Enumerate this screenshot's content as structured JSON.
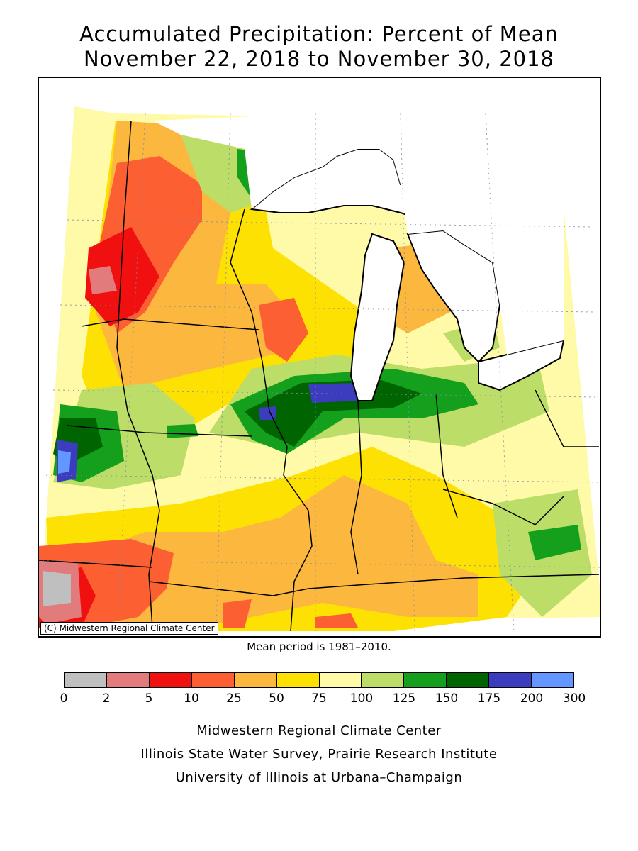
{
  "title": {
    "line1": "Accumulated Precipitation: Percent of Mean",
    "line2": "November 22, 2018 to November 30, 2018"
  },
  "map": {
    "copyright": "(C) Midwestern Regional Climate Center",
    "mean_period": "Mean period is 1981–2010."
  },
  "legend": {
    "colors": [
      "#bfbfbf",
      "#e27b7b",
      "#f0100f",
      "#fb5f32",
      "#fcb73f",
      "#fde102",
      "#fffaa8",
      "#bcdd67",
      "#14a01c",
      "#006400",
      "#3c3cbe",
      "#6496ff"
    ],
    "ticks": [
      "0",
      "2",
      "5",
      "10",
      "25",
      "50",
      "75",
      "100",
      "125",
      "150",
      "175",
      "200",
      "300"
    ]
  },
  "credits": {
    "line1": "Midwestern Regional Climate Center",
    "line2": "Illinois State Water Survey, Prairie Research Institute",
    "line3": "University of Illinois at Urbana–Champaign"
  }
}
